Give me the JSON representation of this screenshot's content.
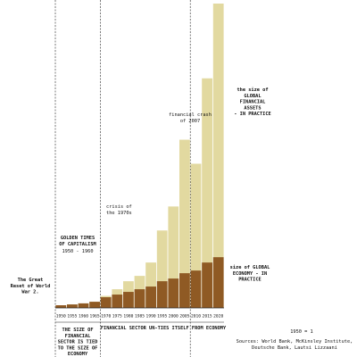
{
  "chart_data": {
    "type": "bar",
    "categories": [
      "1950",
      "1955",
      "1960",
      "1965",
      "1970",
      "1975",
      "1980",
      "1985",
      "1990",
      "1995",
      "2000",
      "2005",
      "2010",
      "2015",
      "2020"
    ],
    "series": [
      {
        "color": "#e2d9a0",
        "values": [
          1,
          1.3,
          1.7,
          2.3,
          4.5,
          7,
          10,
          12,
          17,
          29,
          38,
          63,
          54,
          86,
          114
        ]
      },
      {
        "color": "#8f5a24",
        "values": [
          1,
          1.3,
          1.7,
          2.3,
          4,
          5,
          6,
          7,
          8,
          10,
          11,
          13,
          14,
          17,
          19
        ]
      }
    ],
    "ylim": [
      0,
      114
    ],
    "annotations": [
      {
        "lines": [
          "The Great",
          "Reset of World",
          "War 2."
        ]
      },
      {
        "lines": [
          "GOLDEN TIMES",
          "OF CAPITALISM"
        ]
      },
      {
        "lines": [
          "1950 - 1960"
        ]
      },
      {
        "lines": [
          "crisis of",
          "the 1970s"
        ]
      },
      {
        "lines": [
          "financial crash",
          "of 2007"
        ]
      },
      {
        "lines": [
          "the size of",
          "GLOBAL",
          "FINANCIAL",
          "ASSETS",
          "- IN PRACTICE"
        ]
      },
      {
        "lines": [
          "size of GLOBAL",
          "ECONOMY - IN",
          "PRACTICE"
        ]
      },
      {
        "lines": [
          "THE SIZE OF",
          "FINANCIAL",
          "SECTOR IS TIED",
          "TO THE SIZE OF",
          "ECONOMY"
        ]
      },
      {
        "lines": [
          "FINANCIAL SECTOR UN-TIES ITSELF FROM ECONOMY"
        ]
      },
      {
        "lines": [
          "1950 = 1"
        ]
      },
      {
        "lines": [
          "Sources: World Bank, McKinsley Institute,",
          "Deutsche Bank, Lautsi Lizzaani"
        ]
      }
    ]
  }
}
